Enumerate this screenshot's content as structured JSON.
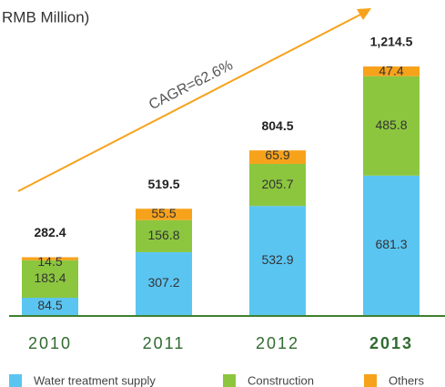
{
  "chart_data": {
    "type": "stacked_bar",
    "title": "RMB Million)",
    "annotation": "CAGR=62.6%",
    "categories": [
      "2010",
      "2011",
      "2012",
      "2013"
    ],
    "highlight_category": "2013",
    "series": [
      {
        "name": "Water treatment supply",
        "color": "#5bc5f2",
        "values": [
          84.5,
          307.2,
          532.9,
          681.3
        ]
      },
      {
        "name": "Construction",
        "color": "#8cc63f",
        "values": [
          183.4,
          156.8,
          205.7,
          485.8
        ]
      },
      {
        "name": "Others",
        "color": "#f7a21b",
        "values": [
          14.5,
          55.5,
          65.9,
          47.4
        ]
      }
    ],
    "totals": {
      "values": [
        282.4,
        519.5,
        804.5,
        1214.5
      ],
      "value_labels": [
        "282.4",
        "519.5",
        "804.5",
        "1,214.5"
      ]
    },
    "ylim": [
      0,
      1214.5
    ]
  }
}
